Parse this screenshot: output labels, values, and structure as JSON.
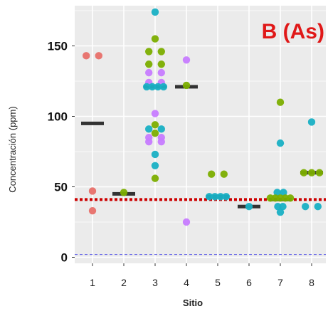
{
  "chart_data": {
    "type": "scatter",
    "panel_label": "B (As)",
    "xlabel": "Sitio",
    "ylabel": "Concentración (ppm)",
    "categories": [
      "1",
      "2",
      "3",
      "4",
      "5",
      "6",
      "7",
      "8"
    ],
    "yticks": [
      0,
      50,
      100,
      150
    ],
    "ylim": [
      -4,
      178
    ],
    "grid": true,
    "colors": {
      "panel_bg": "#ebebeb",
      "grid_major": "#ffffff",
      "median": "#333333",
      "reference_red": "#cc0000",
      "reference_blue": "#6a6ae8",
      "panel_label": "#e01818",
      "salmon": "#e8706a",
      "olive": "#7cae00",
      "teal": "#19b0c4",
      "purple": "#c77cff"
    },
    "reference_lines": [
      {
        "y": 41,
        "style": "dotted",
        "color": "reference_red"
      },
      {
        "y": 2,
        "style": "dashed",
        "color": "reference_blue"
      }
    ],
    "medians": [
      {
        "site": "1",
        "y": 95
      },
      {
        "site": "2",
        "y": 45
      },
      {
        "site": "3",
        "y": 121
      },
      {
        "site": "4",
        "y": 121
      },
      {
        "site": "5",
        "y": 43
      },
      {
        "site": "6",
        "y": 36
      },
      {
        "site": "7",
        "y": 41
      },
      {
        "site": "8",
        "y": 60
      }
    ],
    "points": [
      {
        "site": 1,
        "dx": -0.2,
        "y": 143,
        "color": "salmon"
      },
      {
        "site": 1,
        "dx": 0.2,
        "y": 143,
        "color": "salmon"
      },
      {
        "site": 1,
        "dx": 0.0,
        "y": 47,
        "color": "salmon"
      },
      {
        "site": 1,
        "dx": 0.0,
        "y": 33,
        "color": "salmon"
      },
      {
        "site": 2,
        "dx": 0.0,
        "y": 46,
        "color": "olive"
      },
      {
        "site": 3,
        "dx": 0.0,
        "y": 174,
        "color": "teal"
      },
      {
        "site": 3,
        "dx": 0.0,
        "y": 155,
        "color": "olive"
      },
      {
        "site": 3,
        "dx": -0.2,
        "y": 146,
        "color": "olive"
      },
      {
        "site": 3,
        "dx": 0.2,
        "y": 146,
        "color": "olive"
      },
      {
        "site": 3,
        "dx": -0.2,
        "y": 137,
        "color": "olive"
      },
      {
        "site": 3,
        "dx": 0.2,
        "y": 137,
        "color": "olive"
      },
      {
        "site": 3,
        "dx": -0.2,
        "y": 131,
        "color": "purple"
      },
      {
        "site": 3,
        "dx": 0.2,
        "y": 131,
        "color": "purple"
      },
      {
        "site": 3,
        "dx": -0.2,
        "y": 124,
        "color": "purple"
      },
      {
        "site": 3,
        "dx": 0.2,
        "y": 124,
        "color": "purple"
      },
      {
        "site": 3,
        "dx": -0.27,
        "y": 121,
        "color": "teal"
      },
      {
        "site": 3,
        "dx": -0.09,
        "y": 121,
        "color": "teal"
      },
      {
        "site": 3,
        "dx": 0.09,
        "y": 121,
        "color": "teal"
      },
      {
        "site": 3,
        "dx": 0.27,
        "y": 121,
        "color": "teal"
      },
      {
        "site": 3,
        "dx": 0.0,
        "y": 102,
        "color": "purple"
      },
      {
        "site": 3,
        "dx": 0.0,
        "y": 94,
        "color": "olive"
      },
      {
        "site": 3,
        "dx": -0.2,
        "y": 91,
        "color": "teal"
      },
      {
        "site": 3,
        "dx": 0.2,
        "y": 91,
        "color": "teal"
      },
      {
        "site": 3,
        "dx": 0.0,
        "y": 88,
        "color": "olive"
      },
      {
        "site": 3,
        "dx": -0.2,
        "y": 85,
        "color": "purple"
      },
      {
        "site": 3,
        "dx": 0.2,
        "y": 85,
        "color": "purple"
      },
      {
        "site": 3,
        "dx": -0.2,
        "y": 82,
        "color": "purple"
      },
      {
        "site": 3,
        "dx": 0.2,
        "y": 82,
        "color": "purple"
      },
      {
        "site": 3,
        "dx": 0.0,
        "y": 73,
        "color": "teal"
      },
      {
        "site": 3,
        "dx": 0.0,
        "y": 65,
        "color": "teal"
      },
      {
        "site": 3,
        "dx": 0.0,
        "y": 56,
        "color": "olive"
      },
      {
        "site": 4,
        "dx": 0.0,
        "y": 140,
        "color": "purple"
      },
      {
        "site": 4,
        "dx": 0.0,
        "y": 122,
        "color": "olive"
      },
      {
        "site": 4,
        "dx": 0.0,
        "y": 25,
        "color": "purple"
      },
      {
        "site": 5,
        "dx": -0.2,
        "y": 59,
        "color": "olive"
      },
      {
        "site": 5,
        "dx": 0.2,
        "y": 59,
        "color": "olive"
      },
      {
        "site": 5,
        "dx": -0.27,
        "y": 43,
        "color": "teal"
      },
      {
        "site": 5,
        "dx": -0.09,
        "y": 43,
        "color": "teal"
      },
      {
        "site": 5,
        "dx": 0.09,
        "y": 43,
        "color": "teal"
      },
      {
        "site": 5,
        "dx": 0.27,
        "y": 43,
        "color": "teal"
      },
      {
        "site": 6,
        "dx": 0.0,
        "y": 36,
        "color": "teal"
      },
      {
        "site": 7,
        "dx": 0.0,
        "y": 110,
        "color": "olive"
      },
      {
        "site": 7,
        "dx": 0.0,
        "y": 81,
        "color": "teal"
      },
      {
        "site": 7,
        "dx": -0.1,
        "y": 46,
        "color": "teal"
      },
      {
        "site": 7,
        "dx": 0.1,
        "y": 46,
        "color": "teal"
      },
      {
        "site": 7,
        "dx": -0.32,
        "y": 42,
        "color": "olive"
      },
      {
        "site": 7,
        "dx": -0.16,
        "y": 42,
        "color": "olive"
      },
      {
        "site": 7,
        "dx": 0.0,
        "y": 42,
        "color": "olive"
      },
      {
        "site": 7,
        "dx": 0.16,
        "y": 42,
        "color": "olive"
      },
      {
        "site": 7,
        "dx": 0.32,
        "y": 42,
        "color": "olive"
      },
      {
        "site": 7,
        "dx": -0.08,
        "y": 36,
        "color": "teal"
      },
      {
        "site": 7,
        "dx": 0.08,
        "y": 36,
        "color": "teal"
      },
      {
        "site": 7,
        "dx": 0.0,
        "y": 32,
        "color": "teal"
      },
      {
        "site": 8,
        "dx": 0.0,
        "y": 96,
        "color": "teal"
      },
      {
        "site": 8,
        "dx": -0.25,
        "y": 60,
        "color": "olive"
      },
      {
        "site": 8,
        "dx": 0.0,
        "y": 60,
        "color": "olive"
      },
      {
        "site": 8,
        "dx": 0.25,
        "y": 60,
        "color": "olive"
      },
      {
        "site": 8,
        "dx": -0.2,
        "y": 36,
        "color": "teal"
      },
      {
        "site": 8,
        "dx": 0.2,
        "y": 36,
        "color": "teal"
      }
    ]
  }
}
